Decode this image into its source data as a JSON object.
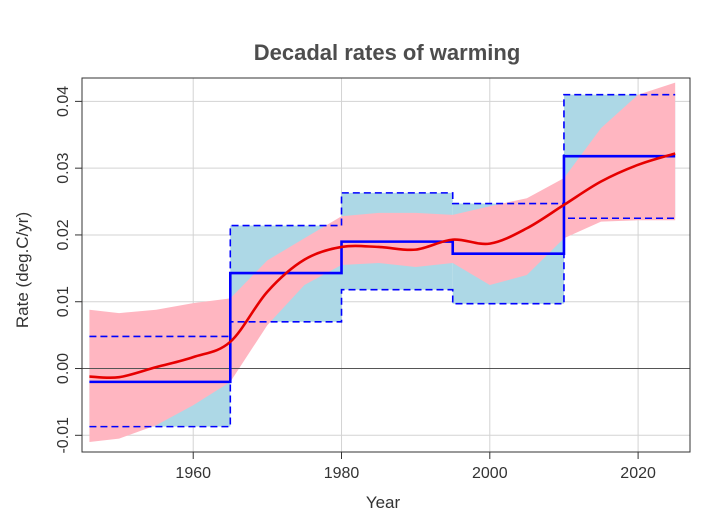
{
  "chart_data": {
    "type": "line",
    "title": "Decadal rates of warming",
    "xlabel": "Year",
    "ylabel": "Rate (deg.C/yr)",
    "xlim": [
      1945,
      2027
    ],
    "ylim": [
      -0.0125,
      0.0435
    ],
    "x_ticks": [
      1960,
      1980,
      2000,
      2020
    ],
    "y_ticks": [
      -0.01,
      0.0,
      0.01,
      0.02,
      0.03,
      0.04
    ],
    "x_tick_labels": [
      "1960",
      "1980",
      "2000",
      "2020"
    ],
    "y_tick_labels": [
      "-0.01",
      "0.00",
      "0.01",
      "0.02",
      "0.03",
      "0.04"
    ],
    "grid": true,
    "reference_line_y": 0.0,
    "series": [
      {
        "kind": "step",
        "style": "solid",
        "color": "#0000ff",
        "segments": [
          {
            "x": [
              1946,
              1965
            ],
            "y": -0.002
          },
          {
            "x": [
              1965,
              1980
            ],
            "y": 0.0143
          },
          {
            "x": [
              1980,
              1995
            ],
            "y": 0.019
          },
          {
            "x": [
              1995,
              2010
            ],
            "y": 0.0172
          },
          {
            "x": [
              2010,
              2025
            ],
            "y": 0.0318
          }
        ]
      },
      {
        "kind": "step-band",
        "style": "dashed",
        "color": "#0000ff",
        "fill": "#add8e6",
        "segments": [
          {
            "x": [
              1946,
              1965
            ],
            "lower": -0.0087,
            "upper": 0.0048
          },
          {
            "x": [
              1965,
              1980
            ],
            "lower": 0.007,
            "upper": 0.0214
          },
          {
            "x": [
              1980,
              1995
            ],
            "lower": 0.0118,
            "upper": 0.0263
          },
          {
            "x": [
              1995,
              2010
            ],
            "lower": 0.0097,
            "upper": 0.0247
          },
          {
            "x": [
              2010,
              2025
            ],
            "lower": 0.0225,
            "upper": 0.041
          }
        ]
      },
      {
        "kind": "smooth",
        "style": "solid",
        "color": "#e60000",
        "fill": "#ffb6c1",
        "x": [
          1946,
          1950,
          1955,
          1960,
          1965,
          1970,
          1975,
          1980,
          1985,
          1990,
          1995,
          2000,
          2005,
          2010,
          2015,
          2020,
          2025
        ],
        "values": [
          -0.0012,
          -0.0013,
          0.0002,
          0.0017,
          0.004,
          0.0115,
          0.0163,
          0.0182,
          0.0182,
          0.0178,
          0.0193,
          0.0187,
          0.021,
          0.0245,
          0.028,
          0.0305,
          0.0322
        ],
        "lower": [
          -0.011,
          -0.0105,
          -0.0085,
          -0.0055,
          -0.002,
          0.0065,
          0.0125,
          0.0155,
          0.0158,
          0.0152,
          0.0158,
          0.0125,
          0.014,
          0.0195,
          0.022,
          0.0222,
          0.0222
        ],
        "upper": [
          0.0088,
          0.0083,
          0.0088,
          0.0098,
          0.0105,
          0.0162,
          0.0195,
          0.0228,
          0.0233,
          0.0233,
          0.023,
          0.0243,
          0.0255,
          0.0285,
          0.036,
          0.041,
          0.0428
        ]
      }
    ],
    "colors": {
      "step_line": "#0000ff",
      "step_band": "#add8e6",
      "smooth_line": "#e60000",
      "smooth_band": "#ffb6c1",
      "grid": "#d3d3d3",
      "zero_line": "#555555",
      "frame": "#333333"
    }
  }
}
